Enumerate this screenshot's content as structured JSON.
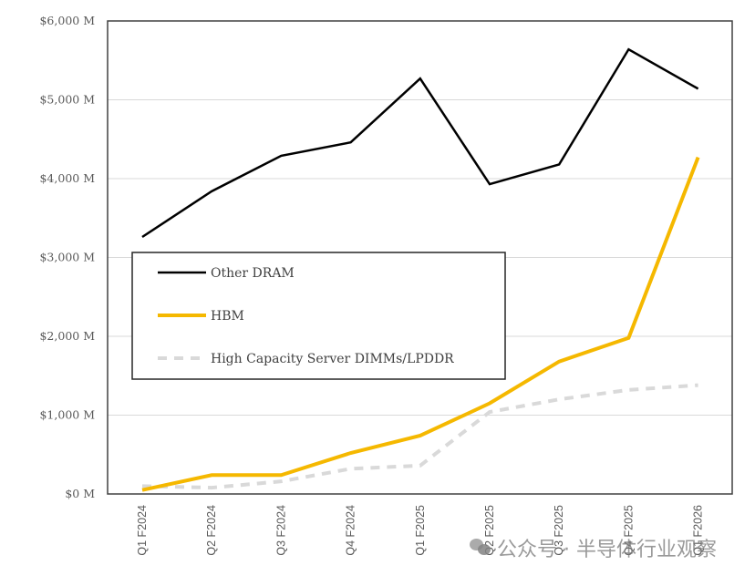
{
  "chart_data": {
    "type": "line",
    "title": "",
    "xlabel": "",
    "ylabel": "",
    "categories": [
      "Q1 F2024",
      "Q2 F2024",
      "Q3 F2024",
      "Q4 F2024",
      "Q1 F2025",
      "Q2 F2025",
      "Q3 F2025",
      "Q4 F2025",
      "Q1 F2026"
    ],
    "ylim": [
      0,
      6000
    ],
    "yticks": [
      0,
      1000,
      2000,
      3000,
      4000,
      5000,
      6000
    ],
    "ytick_labels": [
      "$0 M",
      "$1,000 M",
      "$2,000 M",
      "$3,000 M",
      "$4,000 M",
      "$5,000 M",
      "$6,000 M"
    ],
    "grid": "horizontal",
    "legend_position": "center-left",
    "series": [
      {
        "name": "Other DRAM",
        "color": "#000000",
        "style": "solid",
        "values": [
          3260,
          3840,
          4290,
          4460,
          5270,
          3930,
          4180,
          5640,
          5140
        ]
      },
      {
        "name": "HBM",
        "color": "#F5B800",
        "style": "solid",
        "values": [
          50,
          240,
          240,
          520,
          740,
          1150,
          1680,
          1980,
          4270
        ]
      },
      {
        "name": "High Capacity Server DIMMs/LPDDR",
        "color": "#D9D9D9",
        "style": "dashed",
        "values": [
          100,
          80,
          160,
          320,
          360,
          1040,
          1200,
          1320,
          1380
        ]
      }
    ]
  },
  "watermark": {
    "icon": "wechat-icon",
    "text": "公众号 · 半导体行业观察"
  }
}
